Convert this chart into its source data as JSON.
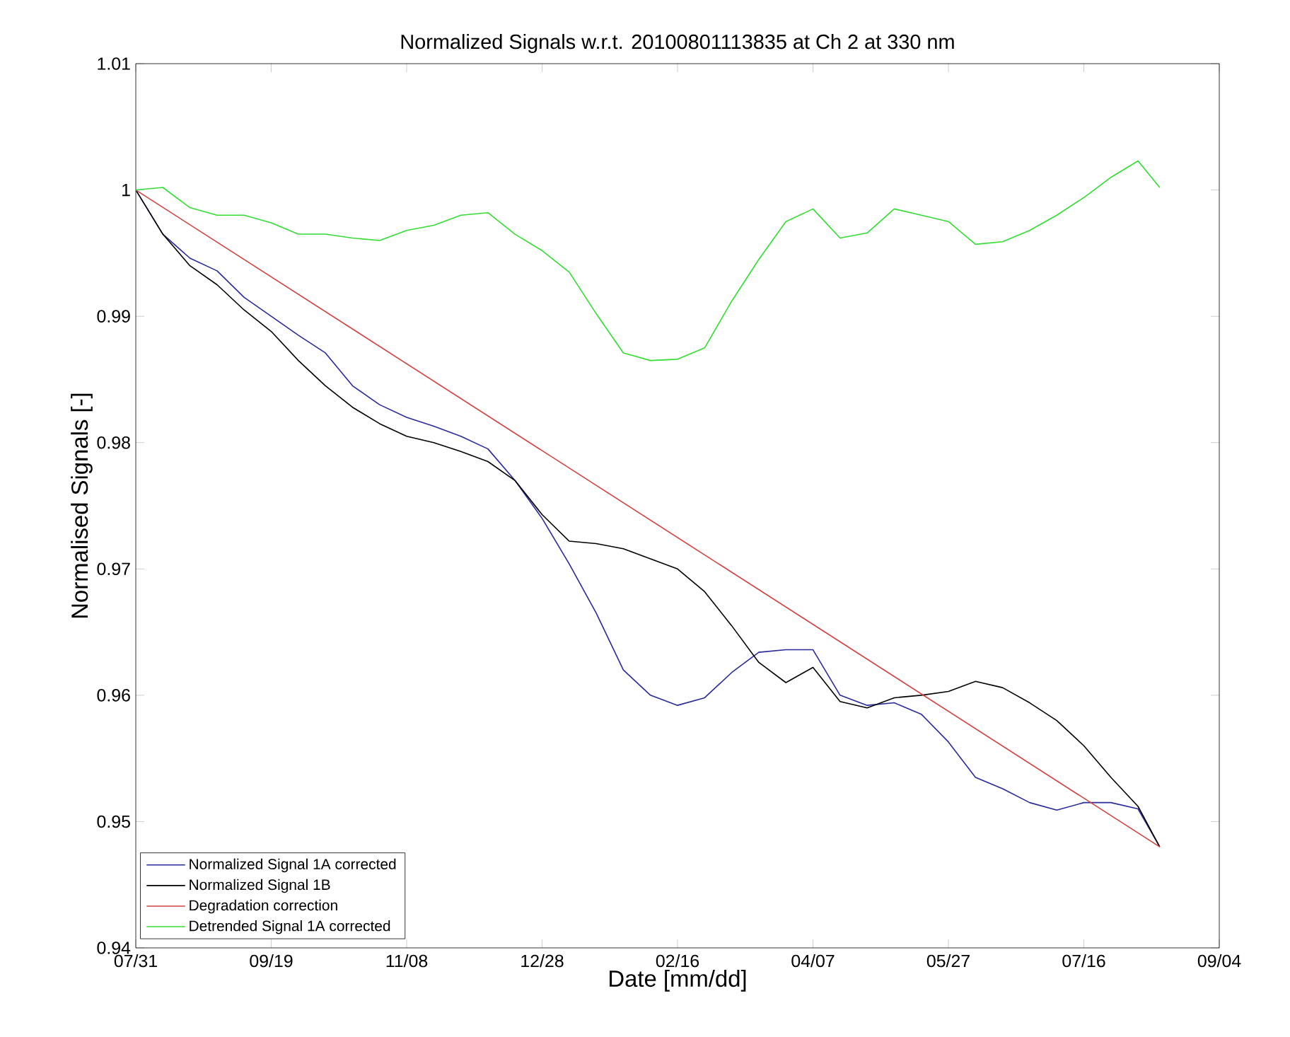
{
  "chart_data": {
    "type": "line",
    "title": "Normalized Signals w.r.t. 20100801113835 at Ch 2 at 330 nm",
    "xlabel": "Date [mm/dd]",
    "ylabel": "Normalised Signals [-]",
    "x": [
      "2010-07-31",
      "2010-08-10",
      "2010-08-20",
      "2010-08-30",
      "2010-09-09",
      "2010-09-19",
      "2010-09-29",
      "2010-10-09",
      "2010-10-19",
      "2010-10-29",
      "2010-11-08",
      "2010-11-18",
      "2010-11-28",
      "2010-12-08",
      "2010-12-18",
      "2010-12-28",
      "2011-01-07",
      "2011-01-17",
      "2011-01-27",
      "2011-02-06",
      "2011-02-16",
      "2011-02-26",
      "2011-03-08",
      "2011-03-18",
      "2011-03-28",
      "2011-04-07",
      "2011-04-17",
      "2011-04-27",
      "2011-05-07",
      "2011-05-17",
      "2011-05-27",
      "2011-06-06",
      "2011-06-16",
      "2011-06-26",
      "2011-07-06",
      "2011-07-16",
      "2011-07-26",
      "2011-08-05",
      "2011-08-13"
    ],
    "series": [
      {
        "name": "Normalized Signal 1A corrected",
        "color": "#2a2a9a",
        "values": [
          1.0,
          0.9965,
          0.9946,
          0.9936,
          0.9915,
          0.99,
          0.9885,
          0.9871,
          0.9845,
          0.983,
          0.982,
          0.9813,
          0.9805,
          0.9795,
          0.977,
          0.974,
          0.9704,
          0.9665,
          0.962,
          0.96,
          0.9592,
          0.9598,
          0.9618,
          0.9634,
          0.9636,
          0.9636,
          0.96,
          0.9592,
          0.9594,
          0.9585,
          0.9563,
          0.9535,
          0.9526,
          0.9515,
          0.9509,
          0.9515,
          0.9515,
          0.951,
          0.948
        ]
      },
      {
        "name": "Normalized Signal 1B",
        "color": "#000000",
        "values": [
          1.0,
          0.9965,
          0.994,
          0.9925,
          0.9905,
          0.9888,
          0.9865,
          0.9845,
          0.9828,
          0.9815,
          0.9805,
          0.98,
          0.9793,
          0.9785,
          0.977,
          0.9743,
          0.9722,
          0.972,
          0.9716,
          0.9708,
          0.97,
          0.9682,
          0.9655,
          0.9626,
          0.961,
          0.9622,
          0.9595,
          0.959,
          0.9598,
          0.96,
          0.9603,
          0.9611,
          0.9606,
          0.9594,
          0.958,
          0.956,
          0.9535,
          0.9512,
          0.948
        ]
      },
      {
        "name": "Degradation correction",
        "color": "#d04040",
        "x": [
          "2010-07-31",
          "2011-08-13"
        ],
        "values": [
          1.0,
          0.948
        ]
      },
      {
        "name": "Detrended Signal 1A corrected",
        "color": "#33dd33",
        "values": [
          1.0,
          1.0002,
          0.9986,
          0.998,
          0.998,
          0.9974,
          0.9965,
          0.9965,
          0.9962,
          0.996,
          0.9968,
          0.9972,
          0.998,
          0.9982,
          0.9965,
          0.9952,
          0.9935,
          0.9902,
          0.9871,
          0.9865,
          0.9866,
          0.9875,
          0.9912,
          0.9945,
          0.9975,
          0.9985,
          0.9962,
          0.9966,
          0.9985,
          0.998,
          0.9975,
          0.9957,
          0.9959,
          0.9968,
          0.998,
          0.9994,
          1.001,
          1.0023,
          1.0002
        ]
      }
    ],
    "xlim": [
      "2010-07-31",
      "2011-09-04"
    ],
    "xticks": [
      {
        "value": "2010-07-31",
        "label": "07/31"
      },
      {
        "value": "2010-09-19",
        "label": "09/19"
      },
      {
        "value": "2010-11-08",
        "label": "11/08"
      },
      {
        "value": "2010-12-28",
        "label": "12/28"
      },
      {
        "value": "2011-02-16",
        "label": "02/16"
      },
      {
        "value": "2011-04-07",
        "label": "04/07"
      },
      {
        "value": "2011-05-27",
        "label": "05/27"
      },
      {
        "value": "2011-07-16",
        "label": "07/16"
      },
      {
        "value": "2011-09-04",
        "label": "09/04"
      }
    ],
    "ylim": [
      0.94,
      1.01
    ],
    "yticks": [
      0.94,
      0.95,
      0.96,
      0.97,
      0.98,
      0.99,
      1,
      1.01
    ],
    "grid": false,
    "legend": "bottom left",
    "marker": "none",
    "line_style": "solid"
  }
}
